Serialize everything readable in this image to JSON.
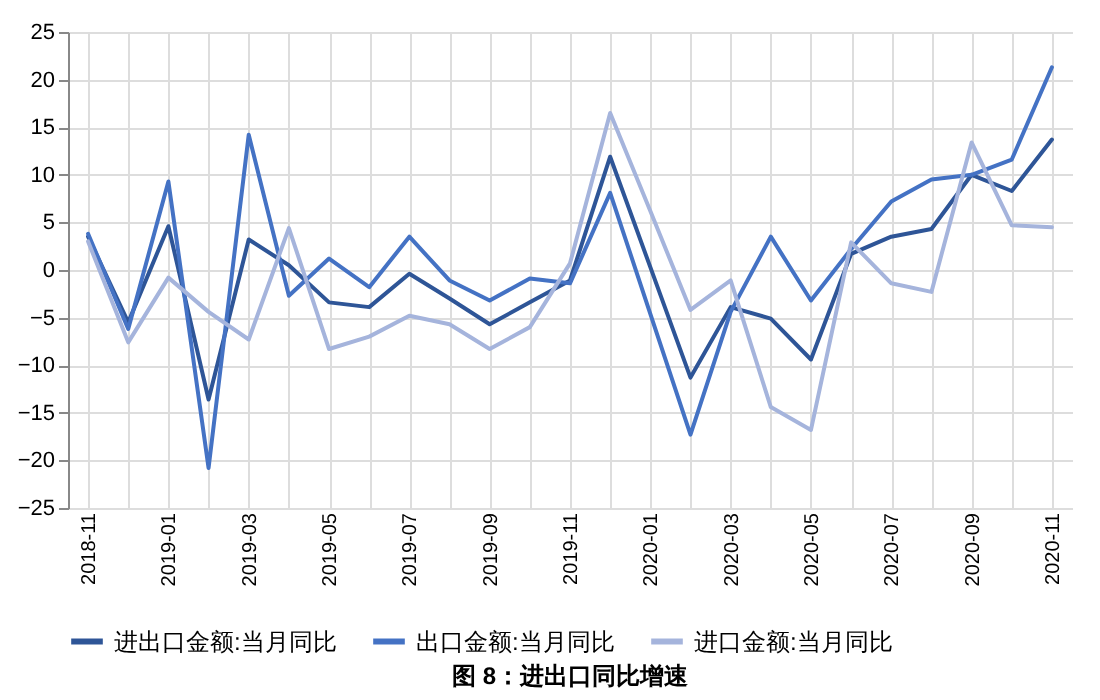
{
  "chart_data": {
    "type": "line",
    "title": "图 8：进出口同比增速",
    "categories": [
      "2018-11",
      null,
      "2019-01",
      null,
      "2019-03",
      null,
      "2019-05",
      null,
      "2019-07",
      null,
      "2019-09",
      null,
      "2019-11",
      null,
      "2020-01",
      null,
      "2020-03",
      null,
      "2020-05",
      null,
      "2020-07",
      null,
      "2020-09",
      null,
      "2020-11"
    ],
    "series": [
      {
        "name": "进出口金额:当月同比",
        "color": "#2e5597",
        "values": [
          3.5,
          -5.5,
          4.6,
          -13.6,
          3.2,
          0.5,
          -3.4,
          -3.9,
          -0.4,
          -3.0,
          -5.7,
          -3.4,
          -1.1,
          11.9,
          0.3,
          -11.3,
          -3.9,
          -5.1,
          -9.4,
          1.7,
          3.5,
          4.3,
          10.0,
          8.3,
          13.7
        ]
      },
      {
        "name": "出口金额:当月同比",
        "color": "#4472c4",
        "values": [
          3.8,
          -6.2,
          9.3,
          -20.8,
          14.2,
          -2.7,
          1.2,
          -1.8,
          3.5,
          -1.1,
          -3.2,
          -0.9,
          -1.4,
          8.1,
          -4.6,
          -17.3,
          -4.4,
          3.5,
          -3.2,
          2.2,
          7.2,
          9.5,
          10.0,
          11.6,
          21.3
        ]
      },
      {
        "name": "进口金额:当月同比",
        "color": "#a5b4dc",
        "values": [
          3.0,
          -7.6,
          -0.8,
          -4.4,
          -7.3,
          4.4,
          -8.3,
          -7.0,
          -4.8,
          -5.7,
          -8.3,
          -6.0,
          0.7,
          16.5,
          6.2,
          -4.2,
          -1.1,
          -14.4,
          -16.8,
          2.9,
          -1.4,
          -2.3,
          13.4,
          4.7,
          4.5
        ]
      }
    ],
    "ylim": [
      -25,
      25
    ],
    "yticks": [
      -25,
      -20,
      -15,
      -10,
      -5,
      0,
      5,
      10,
      15,
      20,
      25
    ],
    "grid": true,
    "legend": "bottom",
    "line_style": "solid",
    "marker": "none"
  }
}
